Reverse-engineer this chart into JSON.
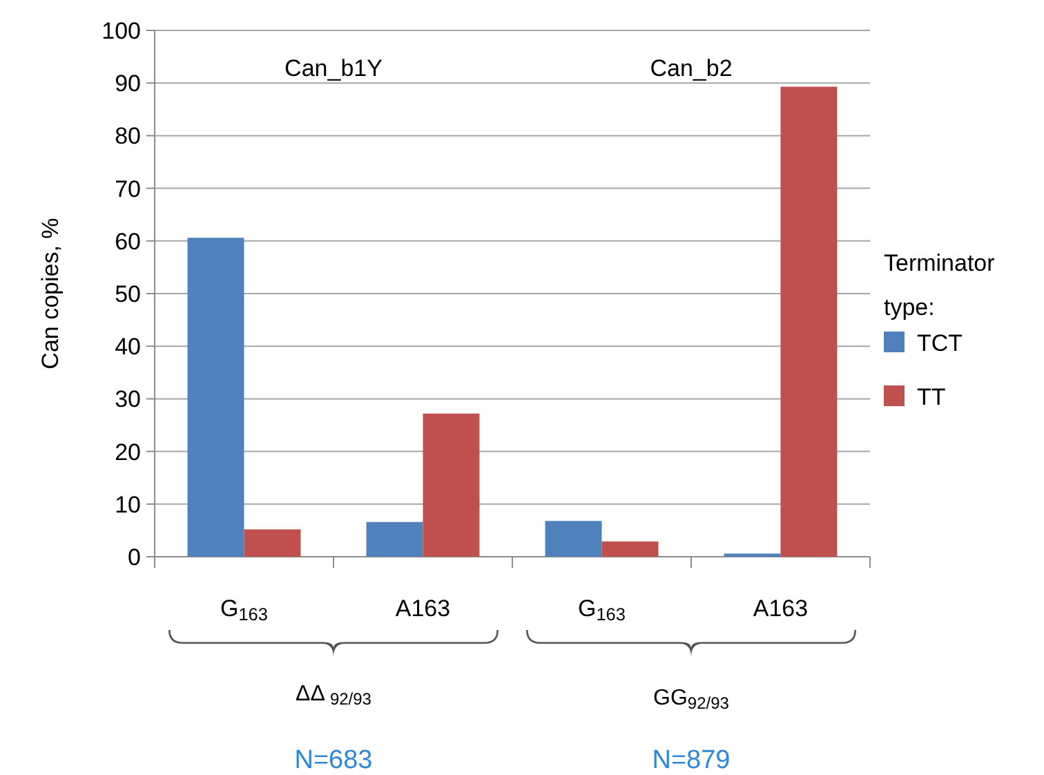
{
  "chart_data": {
    "type": "bar",
    "ylabel": "Can copies, %",
    "legend_title": "Terminator type:",
    "categories": [
      "G$_{163}$",
      "A163",
      "G$_{163}$",
      "A163"
    ],
    "series": [
      {
        "name": "TCT",
        "color": "#4f81bd",
        "values": [
          60.6,
          6.6,
          6.8,
          0.6
        ]
      },
      {
        "name": "TT",
        "color": "#c0504d",
        "values": [
          5.2,
          27.2,
          2.9,
          89.3
        ]
      }
    ],
    "ylim": [
      0,
      100
    ],
    "yticks": [
      0,
      10,
      20,
      30,
      40,
      50,
      60,
      70,
      80,
      90,
      100
    ],
    "grid": "y",
    "legend": "right",
    "annotations": [
      "Can_b1Y",
      "Can_b2",
      "ΔΔ $_{92/93}$",
      "GG$_{92/93}$",
      "N=683",
      "N=879"
    ]
  }
}
